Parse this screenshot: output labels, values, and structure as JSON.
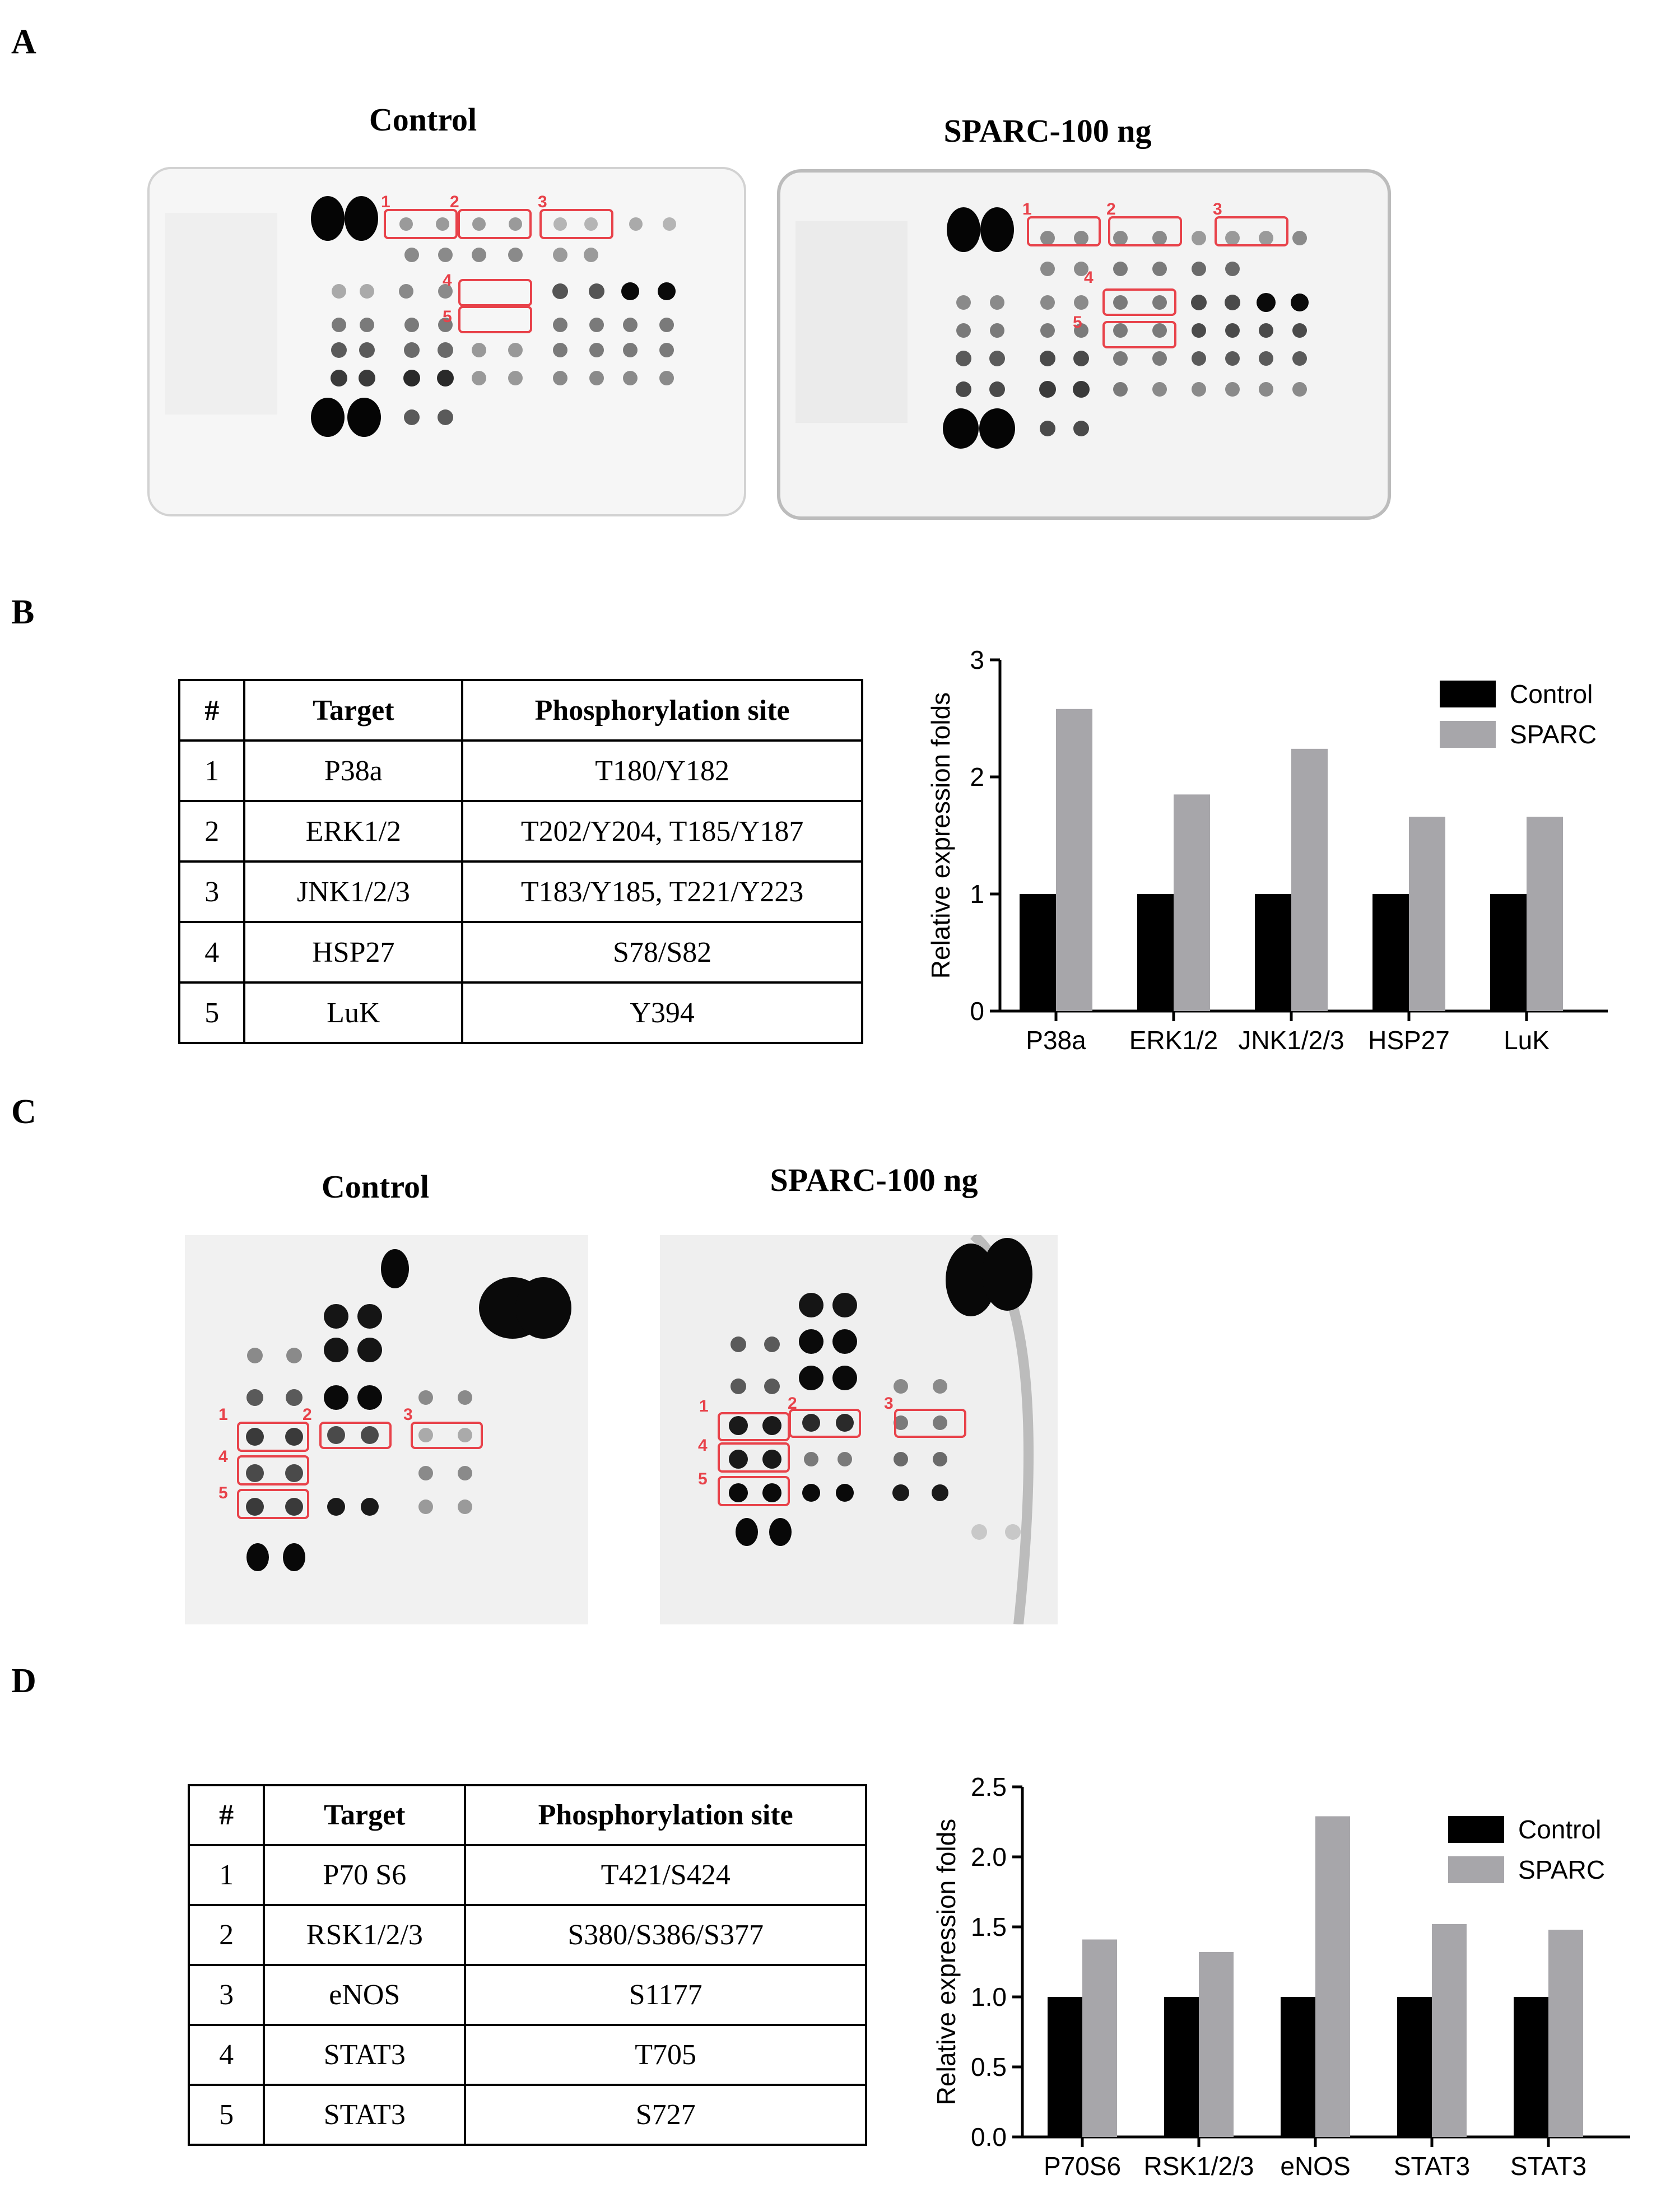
{
  "panels": {
    "A": {
      "letter": "A",
      "blot_left_title": "Control",
      "blot_right_title": "SPARC-100 ng",
      "box_labels": [
        "1",
        "2",
        "3",
        "4",
        "5"
      ]
    },
    "B": {
      "letter": "B",
      "table": {
        "headers": [
          "#",
          "Target",
          "Phosphorylation site"
        ],
        "rows": [
          [
            "1",
            "P38a",
            "T180/Y182"
          ],
          [
            "2",
            "ERK1/2",
            "T202/Y204, T185/Y187"
          ],
          [
            "3",
            "JNK1/2/3",
            "T183/Y185, T221/Y223"
          ],
          [
            "4",
            "HSP27",
            "S78/S82"
          ],
          [
            "5",
            "LuK",
            "Y394"
          ]
        ]
      }
    },
    "C": {
      "letter": "C",
      "blot_left_title": "Control",
      "blot_right_title": "SPARC-100 ng",
      "box_labels": [
        "1",
        "2",
        "3",
        "4",
        "5"
      ]
    },
    "D": {
      "letter": "D",
      "table": {
        "headers": [
          "#",
          "Target",
          "Phosphorylation site"
        ],
        "rows": [
          [
            "1",
            "P70 S6",
            "T421/S424"
          ],
          [
            "2",
            "RSK1/2/3",
            "S380/S386/S377"
          ],
          [
            "3",
            "eNOS",
            "S1177"
          ],
          [
            "4",
            "STAT3",
            "T705"
          ],
          [
            "5",
            "STAT3",
            "S727"
          ]
        ]
      }
    }
  },
  "chart_data": [
    {
      "type": "bar",
      "panel": "B",
      "categories": [
        "P38a",
        "ERK1/2",
        "JNK1/2/3",
        "HSP27",
        "LuK"
      ],
      "series": [
        {
          "name": "Control",
          "color": "#000000",
          "values": [
            1.0,
            1.0,
            1.0,
            1.0,
            1.0
          ]
        },
        {
          "name": "SPARC",
          "color": "#a7a6aa",
          "values": [
            2.58,
            1.85,
            2.24,
            1.66,
            1.66
          ]
        }
      ],
      "ylabel": "Relative expression folds",
      "ylim": [
        0,
        3
      ],
      "yticks": [
        "0",
        "1",
        "2",
        "3"
      ],
      "legend": "top-right",
      "grid": false
    },
    {
      "type": "bar",
      "panel": "D",
      "categories": [
        "P70S6",
        "RSK1/2/3",
        "eNOS",
        "STAT3",
        "STAT3"
      ],
      "series": [
        {
          "name": "Control",
          "color": "#000000",
          "values": [
            1.0,
            1.0,
            1.0,
            1.0,
            1.0
          ]
        },
        {
          "name": "SPARC",
          "color": "#a7a6aa",
          "values": [
            1.41,
            1.32,
            2.29,
            1.52,
            1.48
          ]
        }
      ],
      "ylabel": "Relative expression folds",
      "ylim": [
        0,
        2.5
      ],
      "yticks": [
        "0.0",
        "0.5",
        "1.0",
        "1.5",
        "2.0",
        "2.5"
      ],
      "legend": "top-right",
      "grid": false
    }
  ]
}
